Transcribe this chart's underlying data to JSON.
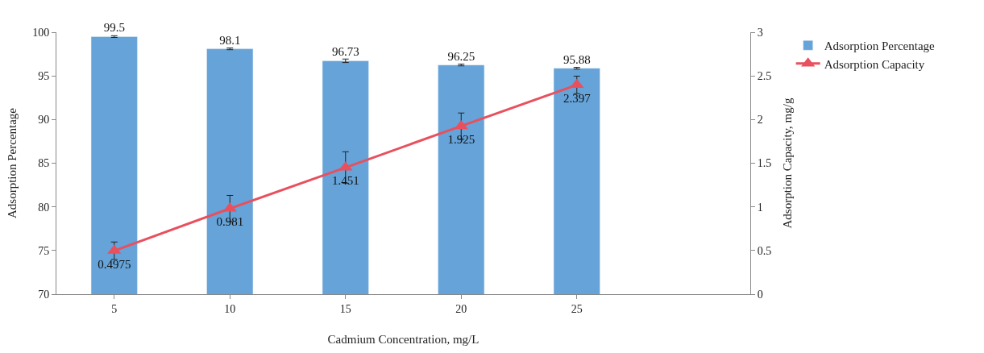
{
  "chart_data": {
    "type": "bar",
    "xlabel": "Cadmium Concentration, mg/L",
    "ylabel": "Adsorption Percentage",
    "y2label": "Adsorption Capacity, mg/g",
    "categories": [
      "5",
      "10",
      "15",
      "20",
      "25",
      null
    ],
    "series": [
      {
        "name": "Adsorption Percentage",
        "color": "#65a3d8",
        "values": [
          99.5,
          98.1,
          96.73,
          96.25,
          95.88,
          null
        ],
        "errors": [
          0.1,
          0.1,
          0.2,
          0.1,
          0.1,
          null
        ]
      },
      {
        "name": "Adsorption Capacity",
        "type": "line",
        "axis": "y2",
        "color": "#e8505e",
        "marker": "triangle",
        "values": [
          0.4975,
          0.981,
          1.451,
          1.925,
          2.397,
          null
        ],
        "errors": [
          0.1,
          0.15,
          0.18,
          0.15,
          0.1,
          null
        ]
      }
    ],
    "ylim": [
      70,
      100
    ],
    "yticks": [
      70,
      75,
      80,
      85,
      90,
      95,
      100
    ],
    "y2lim": [
      0,
      3
    ],
    "y2ticks": [
      0,
      0.5,
      1,
      1.5,
      2,
      2.5,
      3
    ],
    "data_labels": true,
    "legend": "top right"
  }
}
